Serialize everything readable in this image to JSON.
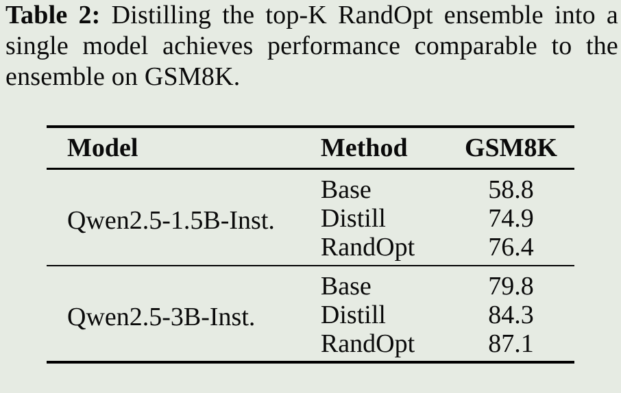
{
  "colors": {
    "background": "#e6ebe3",
    "text": "#0a0a0a",
    "rule": "#000000"
  },
  "caption": {
    "label": "Table 2:",
    "line1_rest": " Distilling the top-K RandOpt ensemble into a",
    "line2": "single model achieves performance comparable to the",
    "line3": "ensemble on GSM8K."
  },
  "table": {
    "headers": [
      "Model",
      "Method",
      "GSM8K"
    ],
    "groups": [
      {
        "model": "Qwen2.5-1.5B-Inst.",
        "rows": [
          {
            "method": "Base",
            "gsm8k": "58.8"
          },
          {
            "method": "Distill",
            "gsm8k": "74.9"
          },
          {
            "method": "RandOpt",
            "gsm8k": "76.4"
          }
        ]
      },
      {
        "model": "Qwen2.5-3B-Inst.",
        "rows": [
          {
            "method": "Base",
            "gsm8k": "79.8"
          },
          {
            "method": "Distill",
            "gsm8k": "84.3"
          },
          {
            "method": "RandOpt",
            "gsm8k": "87.1"
          }
        ]
      }
    ]
  }
}
